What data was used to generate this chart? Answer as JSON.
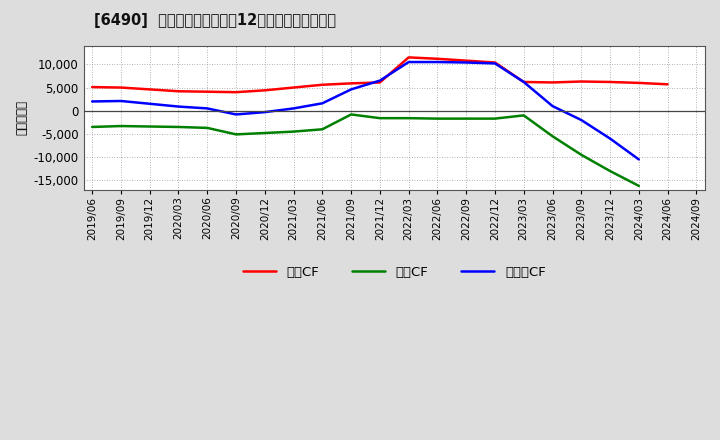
{
  "title": "[6490]  キャッシュフローの12か月移動合計の推移",
  "ylabel": "（百万円）",
  "x_labels": [
    "2019/06",
    "2019/09",
    "2019/12",
    "2020/03",
    "2020/06",
    "2020/09",
    "2020/12",
    "2021/03",
    "2021/06",
    "2021/09",
    "2021/12",
    "2022/03",
    "2022/06",
    "2022/09",
    "2022/12",
    "2023/03",
    "2023/06",
    "2023/09",
    "2023/12",
    "2024/03",
    "2024/06",
    "2024/09"
  ],
  "operating_cf": [
    5100,
    5000,
    4600,
    4200,
    4100,
    4000,
    4400,
    5000,
    5600,
    5900,
    6100,
    11500,
    11200,
    10800,
    10400,
    6200,
    6100,
    6300,
    6200,
    6000,
    5700,
    null
  ],
  "investing_cf": [
    -3500,
    -3300,
    -3400,
    -3500,
    -3700,
    -5100,
    -4800,
    -4500,
    -4000,
    -800,
    -1600,
    -1600,
    -1700,
    -1700,
    -1700,
    -1000,
    -5500,
    -9500,
    -13000,
    -16200,
    null,
    null
  ],
  "free_cf": [
    2000,
    2100,
    1500,
    900,
    500,
    -800,
    -300,
    500,
    1600,
    4600,
    6500,
    10500,
    10500,
    10400,
    10200,
    6200,
    1000,
    -2000,
    -6000,
    -10500,
    null,
    null
  ],
  "ylim": [
    -17000,
    14000
  ],
  "yticks": [
    -15000,
    -10000,
    -5000,
    0,
    5000,
    10000
  ],
  "line_colors": {
    "operating": "#ff0000",
    "investing": "#008000",
    "free": "#0000ff"
  },
  "legend_labels": [
    "営業CF",
    "投資CF",
    "フリーCF"
  ],
  "bg_color": "#dddddd",
  "plot_bg_color": "#ffffff",
  "grid_color": "#999999",
  "linewidth": 1.8
}
